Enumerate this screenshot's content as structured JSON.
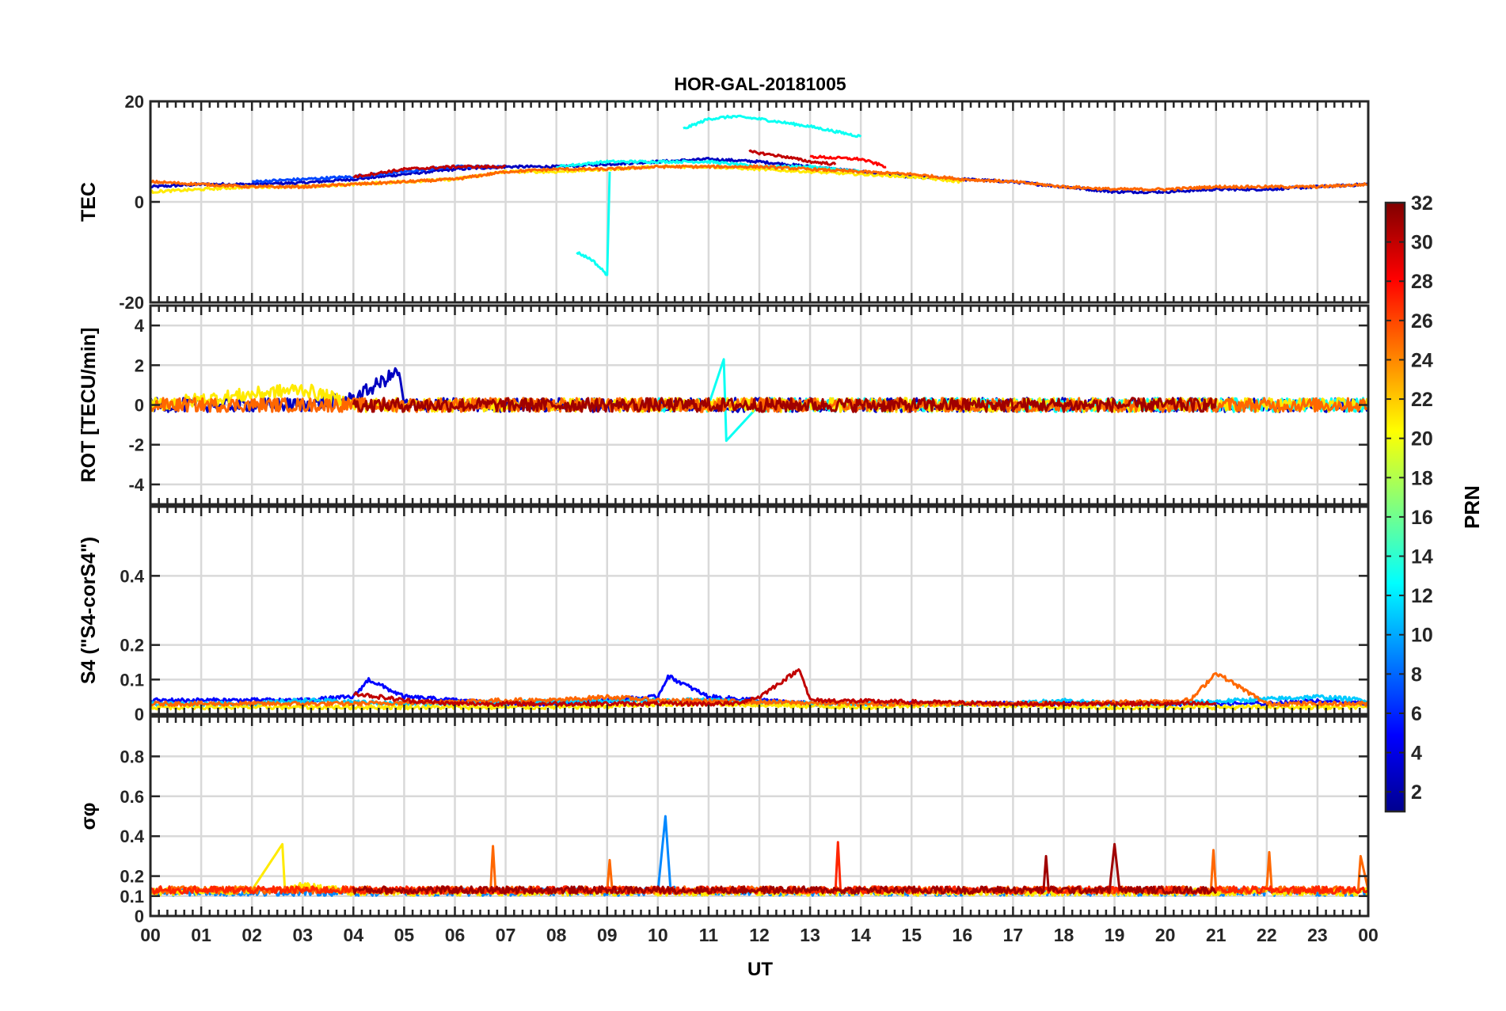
{
  "chart_data": {
    "type": "line",
    "title": "HOR-GAL-20181005",
    "xlabel": "UT",
    "x_ticks": [
      "00",
      "01",
      "02",
      "03",
      "04",
      "05",
      "06",
      "07",
      "08",
      "09",
      "10",
      "11",
      "12",
      "13",
      "14",
      "15",
      "16",
      "17",
      "18",
      "19",
      "20",
      "21",
      "22",
      "23",
      "00"
    ],
    "xlim": [
      0,
      24
    ],
    "grid": true,
    "colorbar": {
      "label": "PRN",
      "range": [
        1,
        32
      ],
      "ticks": [
        "32",
        "30",
        "28",
        "26",
        "24",
        "22",
        "20",
        "18",
        "16",
        "14",
        "12",
        "10",
        "8",
        "6",
        "4",
        "2"
      ],
      "tick_values": [
        32,
        30,
        28,
        26,
        24,
        22,
        20,
        18,
        16,
        14,
        12,
        10,
        8,
        6,
        4,
        2
      ],
      "colormap": "jet"
    },
    "panels": [
      {
        "ylabel": "TEC",
        "ylim": [
          -20,
          20
        ],
        "y_ticks": [
          "20",
          "0",
          "-20"
        ],
        "y_tick_values": [
          20,
          0,
          -20
        ],
        "series": [
          {
            "prn": 3,
            "x": [
              0,
              1,
              2,
              3,
              4,
              5,
              6,
              7,
              8,
              9,
              10,
              11,
              12,
              13,
              14,
              15,
              16,
              17,
              18,
              19,
              20,
              21,
              22,
              23,
              24
            ],
            "y": [
              3,
              3.5,
              3.5,
              3.8,
              4.5,
              5.5,
              6.5,
              7,
              7,
              7.5,
              8,
              8.5,
              8,
              7,
              6,
              5,
              4.5,
              4,
              3,
              2,
              2,
              2.5,
              2.5,
              3,
              3.5
            ]
          },
          {
            "prn": 7,
            "x": [
              2,
              3,
              4,
              5,
              6,
              7
            ],
            "y": [
              4,
              4.5,
              5,
              6,
              7,
              7
            ]
          },
          {
            "prn": 13,
            "x": [
              8,
              9,
              10,
              11,
              12,
              13,
              14
            ],
            "y": [
              7,
              8,
              8,
              8,
              7,
              7,
              6
            ]
          },
          {
            "prn": 13,
            "x": [
              10.5,
              11,
              11.5,
              12,
              13,
              14
            ],
            "y": [
              14.5,
              16.5,
              17,
              16.5,
              15,
              13
            ]
          },
          {
            "prn": 13,
            "x": [
              8.4,
              8.7,
              9,
              9.05
            ],
            "y": [
              -10,
              -11.5,
              -14.5,
              6
            ]
          },
          {
            "prn": 21,
            "x": [
              0,
              1,
              2,
              3,
              4,
              5,
              6,
              7,
              8,
              9,
              10,
              11,
              12,
              13,
              14,
              15,
              16
            ],
            "y": [
              2,
              2.5,
              3,
              3,
              3.5,
              4,
              4.5,
              6,
              6,
              6.5,
              7,
              7,
              6.5,
              6,
              5.5,
              5,
              4
            ]
          },
          {
            "prn": 25,
            "x": [
              0,
              1,
              2,
              3,
              4,
              5,
              6,
              7,
              8,
              9,
              10,
              11,
              12,
              13,
              14,
              15,
              16,
              17,
              18,
              19,
              20,
              21,
              22,
              23,
              24
            ],
            "y": [
              4,
              3.5,
              3,
              3,
              3.5,
              4,
              4.5,
              6,
              6.5,
              6.5,
              7,
              7,
              7,
              6.5,
              6,
              5.5,
              4.5,
              4,
              3,
              2.5,
              2.5,
              3,
              3,
              3,
              3.5
            ]
          },
          {
            "prn": 30,
            "x": [
              4,
              5,
              6,
              7
            ],
            "y": [
              5,
              6.5,
              7,
              7
            ]
          },
          {
            "prn": 30,
            "x": [
              11.8,
              12.5,
              13,
              13.5
            ],
            "y": [
              10,
              9,
              8,
              7.5
            ]
          },
          {
            "prn": 28,
            "x": [
              13,
              14,
              14.5
            ],
            "y": [
              9,
              8.5,
              7
            ]
          }
        ]
      },
      {
        "ylabel": "ROT [TECU/min]",
        "ylim": [
          -5,
          5
        ],
        "y_ticks": [
          "4",
          "2",
          "0",
          "-2",
          "-4"
        ],
        "y_tick_values": [
          4,
          2,
          0,
          -2,
          -4
        ],
        "series": [
          {
            "prn": 3,
            "x": [
              0,
              1,
              2,
              3,
              4,
              4.9,
              5,
              6,
              7,
              8,
              9,
              10,
              11,
              12,
              13,
              14,
              15,
              16,
              17,
              18,
              19,
              20,
              21,
              22,
              23,
              24
            ],
            "y": [
              0,
              0,
              0,
              0,
              0.3,
              1.7,
              0,
              0,
              0,
              0,
              0,
              0,
              0,
              0,
              0,
              0,
              0,
              0,
              0,
              0,
              0,
              0,
              0,
              0,
              0,
              0
            ]
          },
          {
            "prn": 13,
            "x": [
              10,
              11,
              11.3,
              11.35,
              12,
              24
            ],
            "y": [
              0,
              0,
              2.3,
              -1.8,
              0,
              0
            ]
          },
          {
            "prn": 21,
            "x": [
              0,
              3,
              4,
              24
            ],
            "y": [
              0,
              0.8,
              0,
              0
            ]
          },
          {
            "prn": 25,
            "x": [
              0,
              24
            ],
            "y": [
              0,
              0
            ]
          },
          {
            "prn": 31,
            "x": [
              4,
              7,
              11.5,
              13,
              17,
              21
            ],
            "y": [
              0,
              0,
              0,
              0,
              0,
              0
            ]
          }
        ]
      },
      {
        "ylabel": "S4 (\"S4-corS4\")",
        "ylim": [
          0,
          0.6
        ],
        "y_ticks": [
          "0.4",
          "0.2",
          "0.1",
          "0"
        ],
        "y_tick_values": [
          0.4,
          0.2,
          0.1,
          0
        ],
        "series": [
          {
            "prn": 5,
            "x": [
              0,
              1,
              2,
              3,
              4,
              4.3,
              5,
              6,
              7,
              8,
              9,
              10,
              10.2,
              11,
              12,
              13,
              14,
              15,
              16,
              17,
              18,
              19,
              20,
              21,
              22,
              23,
              24
            ],
            "y": [
              0.04,
              0.04,
              0.04,
              0.04,
              0.05,
              0.1,
              0.05,
              0.04,
              0.03,
              0.03,
              0.04,
              0.05,
              0.11,
              0.05,
              0.04,
              0.03,
              0.03,
              0.03,
              0.03,
              0.03,
              0.03,
              0.03,
              0.03,
              0.03,
              0.03,
              0.04,
              0.03
            ]
          },
          {
            "prn": 11,
            "x": [
              0,
              2,
              3,
              5,
              10,
              11,
              13,
              17,
              18,
              19,
              20,
              23,
              24
            ],
            "y": [
              0.03,
              0.03,
              0.04,
              0.03,
              0.04,
              0.04,
              0.03,
              0.03,
              0.04,
              0.03,
              0.03,
              0.05,
              0.04
            ]
          },
          {
            "prn": 21,
            "x": [
              0,
              2,
              4,
              8,
              11,
              14,
              16,
              18,
              24
            ],
            "y": [
              0.02,
              0.02,
              0.02,
              0.02,
              0.03,
              0.02,
              0.03,
              0.02,
              0.02
            ]
          },
          {
            "prn": 25,
            "x": [
              0,
              4,
              7,
              8,
              9,
              10,
              14,
              18,
              20.5,
              21,
              22,
              24
            ],
            "y": [
              0.03,
              0.03,
              0.04,
              0.04,
              0.05,
              0.04,
              0.03,
              0.03,
              0.04,
              0.12,
              0.03,
              0.03
            ]
          },
          {
            "prn": 30,
            "x": [
              4,
              5,
              6,
              11.5,
              12,
              12.8,
              13,
              17,
              21
            ],
            "y": [
              0.06,
              0.04,
              0.03,
              0.03,
              0.05,
              0.13,
              0.04,
              0.03,
              0.03
            ]
          }
        ]
      },
      {
        "ylabel": "σφ",
        "ylim": [
          0,
          1
        ],
        "y_ticks": [
          "0.8",
          "0.6",
          "0.4",
          "0.2",
          "0.1",
          "0"
        ],
        "y_tick_values": [
          0.8,
          0.6,
          0.4,
          0.2,
          0.1,
          0
        ],
        "series": [
          {
            "prn": 9,
            "x": [
              0,
              10,
              10.15,
              10.25,
              11,
              24
            ],
            "y": [
              0.12,
              0.12,
              0.5,
              0.13,
              0.12,
              0.12
            ]
          },
          {
            "prn": 21,
            "x": [
              0,
              2,
              2.6,
              2.65,
              3,
              4,
              11,
              14,
              16,
              24
            ],
            "y": [
              0.12,
              0.13,
              0.36,
              0.13,
              0.15,
              0.12,
              0.12,
              0.12,
              0.12,
              0.12
            ]
          },
          {
            "prn": 25,
            "x": [
              0,
              6.7,
              6.75,
              6.8,
              9,
              9.05,
              9.1,
              20.9,
              20.95,
              21,
              22,
              22.05,
              22.1,
              23.8,
              23.85,
              24
            ],
            "y": [
              0.13,
              0.13,
              0.35,
              0.13,
              0.13,
              0.28,
              0.13,
              0.13,
              0.33,
              0.13,
              0.13,
              0.32,
              0.13,
              0.13,
              0.3,
              0.13
            ]
          },
          {
            "prn": 27,
            "x": [
              0,
              13.5,
              13.55,
              13.6,
              24
            ],
            "y": [
              0.13,
              0.13,
              0.37,
              0.13,
              0.13
            ]
          },
          {
            "prn": 31,
            "x": [
              4,
              7,
              12,
              13,
              17.6,
              17.65,
              17.7,
              18.9,
              19,
              19.1,
              21
            ],
            "y": [
              0.13,
              0.13,
              0.13,
              0.13,
              0.13,
              0.3,
              0.13,
              0.13,
              0.36,
              0.13,
              0.13
            ]
          }
        ]
      }
    ]
  }
}
